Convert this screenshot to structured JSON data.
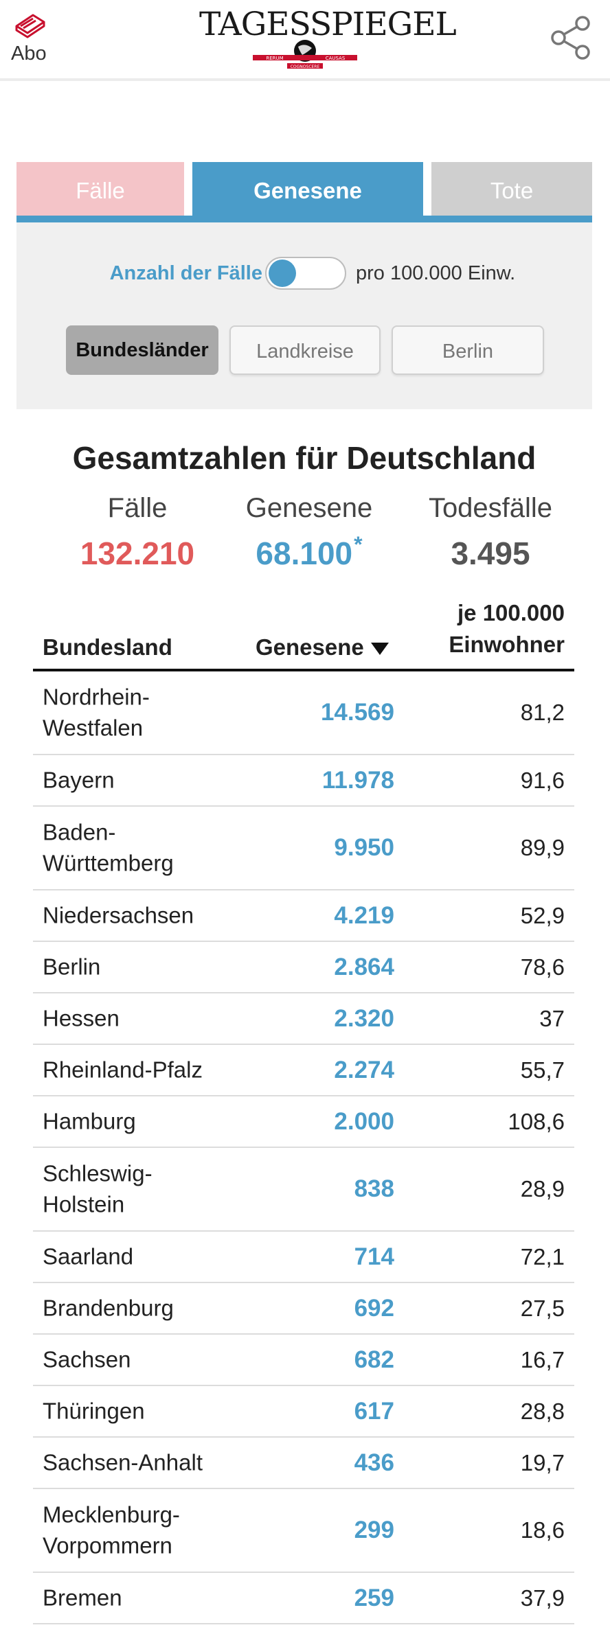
{
  "header": {
    "abo_label": "Abo",
    "logo_text": "TAGESSPIEGEL",
    "logo_badge_left": "RERUM",
    "logo_badge_right": "CAUSAS",
    "logo_badge_bottom": "COGNOSCERE",
    "icons": {
      "abo": "newspaper-icon",
      "share": "share-icon"
    }
  },
  "tabs": [
    {
      "label": "Fälle",
      "active": false
    },
    {
      "label": "Genesene",
      "active": true
    },
    {
      "label": "Tote",
      "active": false
    }
  ],
  "toggle": {
    "left_label": "Anzahl der Fälle",
    "right_label": "pro 100.000 Einw.",
    "state": "left"
  },
  "segments": [
    {
      "label": "Bundesländer",
      "active": true
    },
    {
      "label": "Landkreise",
      "active": false
    },
    {
      "label": "Berlin",
      "active": false
    }
  ],
  "totals": {
    "title": "Gesamtzahlen für Deutschland",
    "faelle_label": "Fälle",
    "faelle_value": "132.210",
    "genesene_label": "Genesene",
    "genesene_value": "68.100",
    "genesene_marker": "*",
    "tote_label": "Todesfälle",
    "tote_value": "3.495"
  },
  "table": {
    "col_land": "Bundesland",
    "col_genesene": "Genesene",
    "col_per_line1": "je 100.000",
    "col_per_line2": "Einwohner",
    "sort": "descending",
    "rows": [
      {
        "name_line1": "Nordrhein-",
        "name_line2": "Westfalen",
        "genesene": "14.569",
        "per100k": "81,2"
      },
      {
        "name_line1": "Bayern",
        "name_line2": "",
        "genesene": "11.978",
        "per100k": "91,6"
      },
      {
        "name_line1": "Baden-",
        "name_line2": "Württemberg",
        "genesene": "9.950",
        "per100k": "89,9"
      },
      {
        "name_line1": "Niedersachsen",
        "name_line2": "",
        "genesene": "4.219",
        "per100k": "52,9"
      },
      {
        "name_line1": "Berlin",
        "name_line2": "",
        "genesene": "2.864",
        "per100k": "78,6"
      },
      {
        "name_line1": "Hessen",
        "name_line2": "",
        "genesene": "2.320",
        "per100k": "37"
      },
      {
        "name_line1": "Rheinland-Pfalz",
        "name_line2": "",
        "genesene": "2.274",
        "per100k": "55,7"
      },
      {
        "name_line1": "Hamburg",
        "name_line2": "",
        "genesene": "2.000",
        "per100k": "108,6"
      },
      {
        "name_line1": "Schleswig-",
        "name_line2": "Holstein",
        "genesene": "838",
        "per100k": "28,9"
      },
      {
        "name_line1": "Saarland",
        "name_line2": "",
        "genesene": "714",
        "per100k": "72,1"
      },
      {
        "name_line1": "Brandenburg",
        "name_line2": "",
        "genesene": "692",
        "per100k": "27,5"
      },
      {
        "name_line1": "Sachsen",
        "name_line2": "",
        "genesene": "682",
        "per100k": "16,7"
      },
      {
        "name_line1": "Thüringen",
        "name_line2": "",
        "genesene": "617",
        "per100k": "28,8"
      },
      {
        "name_line1": "Sachsen-Anhalt",
        "name_line2": "",
        "genesene": "436",
        "per100k": "19,7"
      },
      {
        "name_line1": "Mecklenburg-",
        "name_line2": "Vorpommern",
        "genesene": "299",
        "per100k": "18,6"
      },
      {
        "name_line1": "Bremen",
        "name_line2": "",
        "genesene": "259",
        "per100k": "37,9"
      }
    ]
  },
  "colors": {
    "faelle": "#e05a5a",
    "genesene": "#4a9cc9",
    "tote": "#555555",
    "tab_faelle": "#f4c4c8",
    "tab_tote": "#cfcfcf",
    "logo_red": "#c8102e"
  }
}
